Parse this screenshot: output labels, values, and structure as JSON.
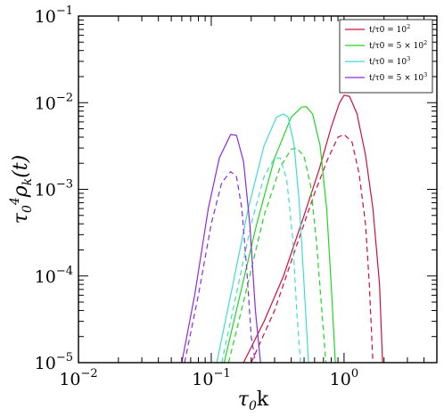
{
  "chart_data": {
    "type": "line",
    "title": "",
    "xlabel": "τ0k",
    "ylabel": "τ0⁴ρk(t)",
    "xscale": "log",
    "yscale": "log",
    "xlim": [
      0.01,
      5
    ],
    "ylim": [
      1e-05,
      0.1
    ],
    "grid": false,
    "legend_position": "top-right",
    "x_ticks": [
      {
        "value": 0.01,
        "base": "10",
        "exp": "−2"
      },
      {
        "value": 0.1,
        "base": "10",
        "exp": "−1"
      },
      {
        "value": 1,
        "base": "10",
        "exp": "0"
      }
    ],
    "y_ticks": [
      {
        "value": 1e-05,
        "base": "10",
        "exp": "−5"
      },
      {
        "value": 0.0001,
        "base": "10",
        "exp": "−4"
      },
      {
        "value": 0.001,
        "base": "10",
        "exp": "−3"
      },
      {
        "value": 0.01,
        "base": "10",
        "exp": "−2"
      },
      {
        "value": 0.1,
        "base": "10",
        "exp": "−1"
      }
    ],
    "series": [
      {
        "name": "t/τ0 = 10²",
        "color": "#d0103a",
        "style": "solid",
        "x": [
          0.175,
          0.25,
          0.35,
          0.5,
          0.65,
          0.8,
          0.92,
          1.0,
          1.1,
          1.25,
          1.45,
          1.65,
          1.85,
          1.95
        ],
        "y": [
          1e-05,
          3e-05,
          0.0001,
          0.0005,
          0.0017,
          0.0052,
          0.0098,
          0.0122,
          0.0118,
          0.0075,
          0.0025,
          0.0006,
          8e-05,
          1e-05
        ]
      },
      {
        "name": "t/τ0 = 10²",
        "color": "#d0103a",
        "style": "dashed",
        "x": [
          0.2,
          0.3,
          0.45,
          0.6,
          0.75,
          0.9,
          1.0,
          1.15,
          1.3,
          1.45,
          1.55,
          1.65
        ],
        "y": [
          1e-05,
          4e-05,
          0.00025,
          0.0009,
          0.0022,
          0.004,
          0.0043,
          0.0035,
          0.0015,
          0.0004,
          8e-05,
          1e-05
        ]
      },
      {
        "name": "t/τ0 = 5 × 10²",
        "color": "#1fd81f",
        "style": "solid",
        "x": [
          0.125,
          0.16,
          0.22,
          0.3,
          0.4,
          0.48,
          0.52,
          0.58,
          0.66,
          0.74,
          0.8,
          0.86
        ],
        "y": [
          1e-05,
          5e-05,
          0.0004,
          0.0023,
          0.0068,
          0.0089,
          0.009,
          0.0074,
          0.0032,
          0.0006,
          8e-05,
          1e-05
        ]
      },
      {
        "name": "t/τ0 = 5 × 10²",
        "color": "#1fd81f",
        "style": "dashed",
        "x": [
          0.135,
          0.18,
          0.25,
          0.33,
          0.4,
          0.44,
          0.5,
          0.56,
          0.62,
          0.68,
          0.73
        ],
        "y": [
          1e-05,
          6e-05,
          0.0005,
          0.0018,
          0.0029,
          0.003,
          0.0024,
          0.0011,
          0.00025,
          4e-05,
          1e-05
        ]
      },
      {
        "name": "t/τ0 = 10³",
        "color": "#3fdcd2",
        "style": "solid",
        "x": [
          0.11,
          0.14,
          0.19,
          0.25,
          0.31,
          0.35,
          0.38,
          0.42,
          0.46,
          0.5,
          0.54
        ],
        "y": [
          1e-05,
          6e-05,
          0.0006,
          0.0032,
          0.0068,
          0.0074,
          0.0068,
          0.0033,
          0.0007,
          8e-05,
          1e-05
        ]
      },
      {
        "name": "t/τ0 = 10³",
        "color": "#3fdcd2",
        "style": "dashed",
        "x": [
          0.12,
          0.15,
          0.2,
          0.25,
          0.3,
          0.33,
          0.37,
          0.41,
          0.44,
          0.47
        ],
        "y": [
          1e-05,
          5e-05,
          0.0004,
          0.0014,
          0.0023,
          0.0023,
          0.0013,
          0.00028,
          4e-05,
          1e-05
        ]
      },
      {
        "name": "t/τ0 = 5 × 10³",
        "color": "#8a2be2",
        "style": "solid",
        "x": [
          0.06,
          0.075,
          0.095,
          0.115,
          0.14,
          0.155,
          0.175,
          0.195,
          0.215,
          0.235
        ],
        "y": [
          1e-05,
          6e-05,
          0.0006,
          0.0023,
          0.0043,
          0.0042,
          0.0021,
          0.0004,
          4e-05,
          1e-05
        ]
      },
      {
        "name": "t/τ0 = 5 × 10³",
        "color": "#8a2be2",
        "style": "dashed",
        "x": [
          0.063,
          0.08,
          0.1,
          0.12,
          0.14,
          0.155,
          0.17,
          0.185,
          0.2,
          0.215
        ],
        "y": [
          1e-05,
          6e-05,
          0.0004,
          0.0012,
          0.0016,
          0.0014,
          0.0006,
          0.00012,
          2e-05,
          1e-05
        ]
      }
    ],
    "legend": [
      {
        "base": "t/τ0 = ",
        "main": "10",
        "exp": "2",
        "color": "#d0103a"
      },
      {
        "base": "t/τ0 = 5 × ",
        "main": "10",
        "exp": "2",
        "color": "#1fd81f"
      },
      {
        "base": "t/τ0 = ",
        "main": "10",
        "exp": "3",
        "color": "#3fdcd2"
      },
      {
        "base": "t/τ0 = 5 × ",
        "main": "10",
        "exp": "3",
        "color": "#8a2be2"
      }
    ]
  }
}
